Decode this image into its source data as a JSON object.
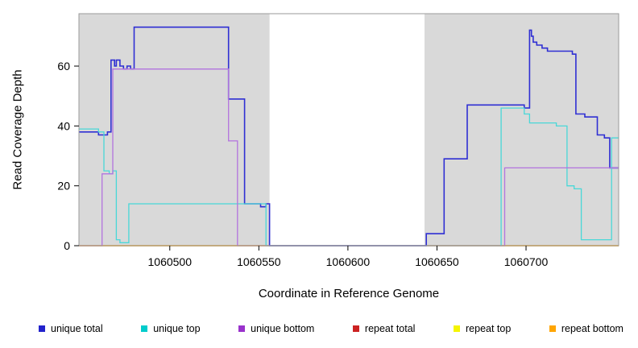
{
  "chart_data": {
    "type": "line",
    "title": "",
    "xlabel": "Coordinate in Reference Genome",
    "ylabel": "Read Coverage Depth",
    "xlim": [
      1060449,
      1060752
    ],
    "ylim": [
      0,
      77.5
    ],
    "x_ticks": [
      1060500,
      1060550,
      1060600,
      1060650,
      1060700
    ],
    "y_ticks": [
      0,
      20,
      40,
      60
    ],
    "grid": false,
    "legend_position": "bottom",
    "plot_border_color": "#9a9a9a",
    "shaded_regions": [
      {
        "x0": 1060449,
        "x1": 1060556,
        "color": "#d9d9d9"
      },
      {
        "x0": 1060643,
        "x1": 1060752,
        "color": "#d9d9d9"
      }
    ],
    "draw_order": [
      3,
      4,
      5,
      0,
      1,
      2
    ],
    "series": [
      {
        "name": "unique total",
        "legend_color": "#2222cc",
        "color": "#2f2fd3",
        "width": 1.6,
        "step_points": [
          [
            1060449,
            38
          ],
          [
            1060460,
            37
          ],
          [
            1060465,
            38
          ],
          [
            1060467,
            62
          ],
          [
            1060469,
            60
          ],
          [
            1060470,
            62
          ],
          [
            1060472,
            60
          ],
          [
            1060474,
            59
          ],
          [
            1060476,
            60
          ],
          [
            1060478,
            59
          ],
          [
            1060480,
            73
          ],
          [
            1060533,
            49
          ],
          [
            1060542,
            14
          ],
          [
            1060551,
            13
          ],
          [
            1060554,
            14
          ],
          [
            1060556,
            0
          ],
          [
            1060644,
            4
          ],
          [
            1060654,
            29
          ],
          [
            1060667,
            47
          ],
          [
            1060699,
            46
          ],
          [
            1060702,
            72
          ],
          [
            1060703,
            70
          ],
          [
            1060704,
            68
          ],
          [
            1060706,
            67
          ],
          [
            1060709,
            66
          ],
          [
            1060712,
            65
          ],
          [
            1060726,
            64
          ],
          [
            1060728,
            44
          ],
          [
            1060733,
            43
          ],
          [
            1060740,
            37
          ],
          [
            1060744,
            36
          ],
          [
            1060747,
            26
          ]
        ]
      },
      {
        "name": "unique top",
        "legend_color": "#00cccc",
        "color": "#49d8d8",
        "width": 1.3,
        "step_points": [
          [
            1060449,
            39
          ],
          [
            1060460,
            38
          ],
          [
            1060463,
            25
          ],
          [
            1060466,
            24
          ],
          [
            1060468,
            25
          ],
          [
            1060470,
            2
          ],
          [
            1060472,
            1
          ],
          [
            1060477,
            14
          ],
          [
            1060552,
            14
          ],
          [
            1060554,
            0
          ],
          [
            1060686,
            46
          ],
          [
            1060699,
            44
          ],
          [
            1060702,
            41
          ],
          [
            1060717,
            40
          ],
          [
            1060723,
            20
          ],
          [
            1060727,
            19
          ],
          [
            1060731,
            2
          ],
          [
            1060746,
            2
          ],
          [
            1060748,
            36
          ]
        ]
      },
      {
        "name": "unique bottom",
        "legend_color": "#9932cc",
        "color": "#b273de",
        "width": 1.3,
        "step_points": [
          [
            1060449,
            0
          ],
          [
            1060462,
            24
          ],
          [
            1060468,
            59
          ],
          [
            1060533,
            35
          ],
          [
            1060538,
            0
          ],
          [
            1060688,
            26
          ]
        ]
      },
      {
        "name": "repeat total",
        "legend_color": "#cc2222",
        "color": "#cc2222",
        "width": 1.3,
        "step_points": [
          [
            1060449,
            0
          ]
        ]
      },
      {
        "name": "repeat top",
        "legend_color": "#f5f500",
        "color": "#f0f000",
        "width": 1.3,
        "step_points": [
          [
            1060449,
            0
          ]
        ]
      },
      {
        "name": "repeat bottom",
        "legend_color": "#ffa500",
        "color": "#ff9f00",
        "width": 1.3,
        "step_points": [
          [
            1060449,
            0
          ]
        ]
      }
    ]
  }
}
